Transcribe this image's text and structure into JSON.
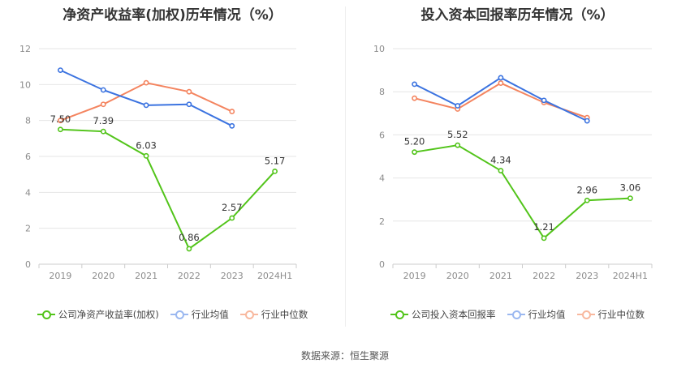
{
  "colors": {
    "company": "#52c41a",
    "industry_avg": "#3b73e0",
    "industry_median": "#f4845f",
    "grid": "#e6e6e6",
    "axis_text": "#8c8c8c",
    "label_text": "#333333"
  },
  "source_text": "数据来源：恒生聚源",
  "chart_data": [
    {
      "type": "line",
      "title": "净资产收益率(加权)历年情况（%）",
      "x": [
        "2019",
        "2020",
        "2021",
        "2022",
        "2023",
        "2024H1"
      ],
      "ylim": [
        0,
        12
      ],
      "yticks": [
        "0",
        "2",
        "4",
        "6",
        "8",
        "10",
        "12"
      ],
      "grid": true,
      "legend_position": "bottom",
      "series": [
        {
          "name": "公司净资产收益率(加权)",
          "values": [
            7.5,
            7.39,
            6.03,
            0.86,
            2.57,
            5.17
          ],
          "labels": [
            "7.50",
            "7.39",
            "6.03",
            "0.86",
            "2.57",
            "5.17"
          ],
          "color_key": "company"
        },
        {
          "name": "行业均值",
          "values": [
            10.8,
            9.7,
            8.85,
            8.9,
            7.7,
            null
          ],
          "color_key": "industry_avg"
        },
        {
          "name": "行业中位数",
          "values": [
            8.0,
            8.9,
            10.1,
            9.6,
            8.5,
            null
          ],
          "color_key": "industry_median"
        }
      ]
    },
    {
      "type": "line",
      "title": "投入资本回报率历年情况（%）",
      "x": [
        "2019",
        "2020",
        "2021",
        "2022",
        "2023",
        "2024H1"
      ],
      "ylim": [
        0,
        10
      ],
      "yticks": [
        "0",
        "2",
        "4",
        "6",
        "8",
        "10"
      ],
      "grid": true,
      "legend_position": "bottom",
      "series": [
        {
          "name": "公司投入资本回报率",
          "values": [
            5.2,
            5.52,
            4.34,
            1.21,
            2.96,
            3.06
          ],
          "labels": [
            "5.20",
            "5.52",
            "4.34",
            "1.21",
            "2.96",
            "3.06"
          ],
          "color_key": "company"
        },
        {
          "name": "行业均值",
          "values": [
            8.35,
            7.35,
            8.65,
            7.6,
            6.65,
            null
          ],
          "color_key": "industry_avg"
        },
        {
          "name": "行业中位数",
          "values": [
            7.7,
            7.2,
            8.4,
            7.5,
            6.8,
            null
          ],
          "color_key": "industry_median"
        }
      ]
    }
  ]
}
